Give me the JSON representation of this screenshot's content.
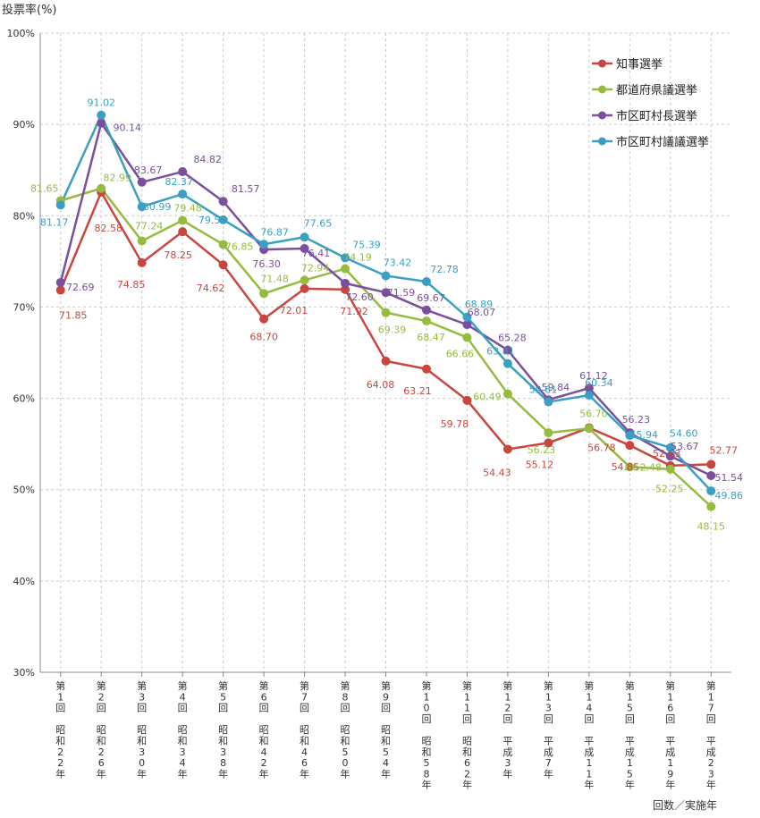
{
  "chart_data": {
    "type": "line",
    "ylabel": "投票率(%)",
    "xlabel": "回数／実施年",
    "ylim": [
      30,
      100
    ],
    "yticks": [
      30,
      40,
      50,
      60,
      70,
      80,
      90,
      100
    ],
    "ytick_suffix": "%",
    "grid": true,
    "legend_position": "top-right",
    "categories": [
      [
        "第",
        "1",
        "回",
        "",
        "昭",
        "和",
        "2",
        "2",
        "年"
      ],
      [
        "第",
        "2",
        "回",
        "",
        "昭",
        "和",
        "2",
        "6",
        "年"
      ],
      [
        "第",
        "3",
        "回",
        "",
        "昭",
        "和",
        "3",
        "0",
        "年"
      ],
      [
        "第",
        "4",
        "回",
        "",
        "昭",
        "和",
        "3",
        "4",
        "年"
      ],
      [
        "第",
        "5",
        "回",
        "",
        "昭",
        "和",
        "3",
        "8",
        "年"
      ],
      [
        "第",
        "6",
        "回",
        "",
        "昭",
        "和",
        "4",
        "2",
        "年"
      ],
      [
        "第",
        "7",
        "回",
        "",
        "昭",
        "和",
        "4",
        "6",
        "年"
      ],
      [
        "第",
        "8",
        "回",
        "",
        "昭",
        "和",
        "5",
        "0",
        "年"
      ],
      [
        "第",
        "9",
        "回",
        "",
        "昭",
        "和",
        "5",
        "4",
        "年"
      ],
      [
        "第",
        "1",
        "0",
        "回",
        "",
        "昭",
        "和",
        "5",
        "8",
        "年"
      ],
      [
        "第",
        "1",
        "1",
        "回",
        "",
        "昭",
        "和",
        "6",
        "2",
        "年"
      ],
      [
        "第",
        "1",
        "2",
        "回",
        "",
        "平",
        "成",
        "3",
        "年"
      ],
      [
        "第",
        "1",
        "3",
        "回",
        "",
        "平",
        "成",
        "7",
        "年"
      ],
      [
        "第",
        "1",
        "4",
        "回",
        "",
        "平",
        "成",
        "1",
        "1",
        "年"
      ],
      [
        "第",
        "1",
        "5",
        "回",
        "",
        "平",
        "成",
        "1",
        "5",
        "年"
      ],
      [
        "第",
        "1",
        "6",
        "回",
        "",
        "平",
        "成",
        "1",
        "9",
        "年"
      ],
      [
        "第",
        "1",
        "7",
        "回",
        "",
        "平",
        "成",
        "2",
        "3",
        "年"
      ]
    ],
    "series": [
      {
        "name": "知事選挙",
        "color": "#c8463f",
        "values": [
          71.85,
          82.58,
          74.85,
          78.25,
          74.62,
          68.7,
          72.01,
          71.92,
          64.08,
          63.21,
          59.78,
          54.43,
          55.12,
          56.78,
          54.85,
          52.63,
          52.77
        ]
      },
      {
        "name": "都道府県議選挙",
        "color": "#96bb3f",
        "values": [
          81.65,
          82.99,
          77.24,
          79.48,
          76.85,
          71.48,
          72.94,
          74.19,
          69.39,
          68.47,
          66.66,
          60.49,
          56.23,
          56.7,
          52.48,
          52.25,
          48.15
        ]
      },
      {
        "name": "市区町村長選挙",
        "color": "#7a4f9e",
        "values": [
          72.69,
          90.14,
          83.67,
          84.82,
          81.57,
          76.3,
          76.41,
          72.6,
          71.59,
          69.67,
          68.07,
          65.28,
          59.84,
          61.12,
          56.23,
          53.67,
          51.54
        ]
      },
      {
        "name": "市区町村議議選挙",
        "color": "#3a9fc2",
        "values": [
          81.17,
          91.02,
          80.99,
          82.37,
          79.55,
          76.87,
          77.65,
          75.39,
          73.42,
          72.78,
          68.89,
          63.81,
          59.61,
          60.34,
          55.94,
          54.6,
          49.86
        ]
      }
    ]
  }
}
